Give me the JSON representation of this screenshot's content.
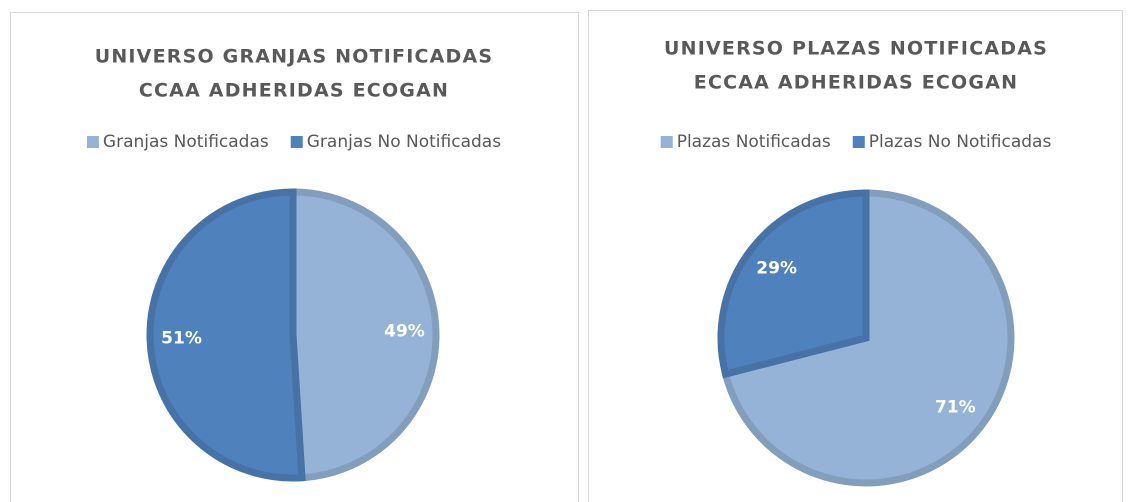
{
  "chart_data": [
    {
      "type": "pie",
      "title": [
        "UNIVERSO GRANJAS NOTIFICADAS",
        "CCAA ADHERIDAS ECOGAN"
      ],
      "categories": [
        "Granjas Notificadas",
        "Granjas No Notificadas"
      ],
      "values": [
        49,
        51
      ],
      "value_labels": [
        "49%",
        "51%"
      ],
      "colors": [
        "#95b3d7",
        "#4f81bd"
      ],
      "legend": "top"
    },
    {
      "type": "pie",
      "title": [
        "UNIVERSO PLAZAS NOTIFICADAS",
        "ECCAA ADHERIDAS ECOGAN"
      ],
      "categories": [
        "Plazas Notificadas",
        "Plazas No Notificadas"
      ],
      "values": [
        71,
        29
      ],
      "value_labels": [
        "71%",
        "29%"
      ],
      "colors": [
        "#95b3d7",
        "#4f81bd"
      ],
      "legend": "top"
    }
  ]
}
